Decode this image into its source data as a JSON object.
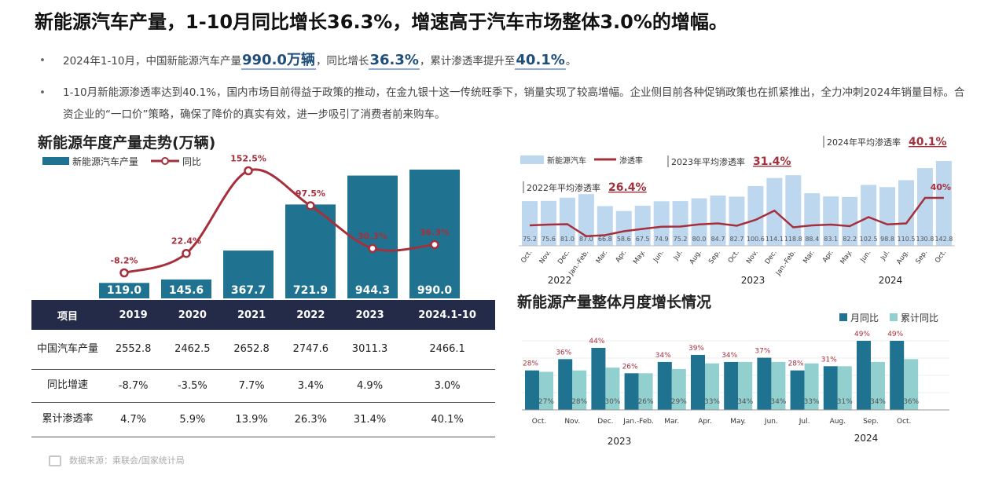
{
  "page_title": "新能源汽车产量，1-10月同比增长36.3%，增速高于汽车市场整体3.0%的增幅。",
  "bullets": {
    "dot": "•",
    "b1": {
      "t1": "2024年1-10月，中国新能源汽车产量",
      "h1": "990.0万辆",
      "t2": "，同比增长",
      "h2": "36.3%",
      "t3": "，累计渗透率提升至",
      "h3": "40.1%",
      "t4": "。"
    },
    "b2": "1-10月新能源渗透率达到40.1%，国内市场目前得益于政策的推动，在金九银十这一传统旺季下，销量实现了较高增幅。企业侧目前各种促销政策也在抓紧推出，全力冲刺2024年销量目标。合资企业的“一口价”策略，确保了降价的真实有效，进一步吸引了消费者前来购车。"
  },
  "colors": {
    "bar": "#1f7391",
    "line": "#a5303c",
    "light_bar": "#bdd7ee",
    "monthly": "#1f7391",
    "cumulative": "#92d0cf",
    "table_header": "#242b48"
  },
  "left_panel": {
    "title": "新能源年度产量走势(万辆)",
    "table_header_label": "项目",
    "rows": [
      {
        "label": "中国汽车产量",
        "values": [
          "2552.8",
          "2462.5",
          "2652.8",
          "2747.6",
          "3011.3",
          "2466.1"
        ]
      },
      {
        "label": "同比增速",
        "values": [
          "-8.7%",
          "-3.5%",
          "7.7%",
          "3.4%",
          "4.9%",
          "3.0%"
        ]
      },
      {
        "label": "累计渗透率",
        "values": [
          "4.7%",
          "5.9%",
          "13.9%",
          "26.3%",
          "31.4%",
          "40.1%"
        ]
      }
    ]
  },
  "right_panel": {
    "title": "新能源产量整体月度增长情况"
  },
  "source": "数据来源：乘联会/国家统计局",
  "chart_data": [
    {
      "type": "bar",
      "categories": [
        "2019",
        "2020",
        "2021",
        "2022",
        "2023",
        "2024.1-10"
      ],
      "series": [
        {
          "name": "新能源汽车产量",
          "values": [
            119.0,
            145.6,
            367.7,
            721.9,
            944.3,
            990.0
          ],
          "labels": [
            "119.0",
            "145.6",
            "367.7",
            "721.9",
            "944.3",
            "990.0"
          ]
        },
        {
          "name": "同比",
          "values": [
            -8.2,
            22.4,
            152.5,
            97.5,
            30.3,
            36.3
          ],
          "labels": [
            "-8.2%",
            "22.4%",
            "152.5%",
            "97.5%",
            "30.3%",
            "36.3%"
          ]
        }
      ],
      "legend": "top-left"
    },
    {
      "type": "bar",
      "categories": [
        "Oct.",
        "Nov.",
        "Dec.",
        "Jan.-Feb.",
        "Mar.",
        "Apr.",
        "May.",
        "Jun.",
        "Jul.",
        "Aug.",
        "Sep.",
        "Oct.",
        "Nov.",
        "Dec.",
        "Jan.-Feb.",
        "Mar.",
        "Apr.",
        "May.",
        "Jun.",
        "Jul.",
        "Aug.",
        "Sep.",
        "Oct."
      ],
      "year_labels": [
        "2022",
        "2023",
        "2024"
      ],
      "series": [
        {
          "name": "新能源汽车",
          "values": [
            75.2,
            75.6,
            81.0,
            87.0,
            66.8,
            58.6,
            67.5,
            74.9,
            75.2,
            80.0,
            84.7,
            82.7,
            100.6,
            114.1,
            118.8,
            88.4,
            83.1,
            82.2,
            102.5,
            98.8,
            110.5,
            130.8,
            142.8
          ],
          "labels": [
            "75.2",
            "75.6",
            "81.0",
            "87.0",
            "66.8",
            "58.6",
            "67.5",
            "74.9",
            "75.2",
            "80.0",
            "84.7",
            "82.7",
            "100.6",
            "114.1",
            "118.8",
            "88.4",
            "83.1",
            "82.2",
            "102.5",
            "98.8",
            "110.5",
            "130.8",
            "142.8"
          ]
        },
        {
          "name": "渗透率",
          "values": [
            26.0,
            26.4,
            26.6,
            20.5,
            21.0,
            23.0,
            24.2,
            25.3,
            25.4,
            26.5,
            27.0,
            25.8,
            28.8,
            33.5,
            25.0,
            26.0,
            26.4,
            25.6,
            30.2,
            26.5,
            27.0,
            40.0,
            40.0
          ],
          "labels": [
            "",
            "",
            "",
            "",
            "",
            "",
            "",
            "",
            "",
            "",
            "",
            "",
            "",
            "",
            "",
            "",
            "",
            "",
            "",
            "",
            "",
            "",
            "40%"
          ]
        }
      ],
      "annotations": [
        {
          "prefix": "2022年平均渗透率",
          "value": "26.4%"
        },
        {
          "prefix": "2023年平均渗透率",
          "value": "31.4%"
        },
        {
          "prefix": "2024年平均渗透率",
          "value": "40.1%"
        }
      ],
      "legend": "top-left"
    },
    {
      "type": "bar",
      "categories": [
        "Oct.",
        "Nov.",
        "Dec.",
        "Jan.-Feb.",
        "Mar.",
        "Apr.",
        "May.",
        "Jun.",
        "Jul.",
        "Aug.",
        "Sep.",
        "Oct."
      ],
      "year_labels": [
        "2023",
        "2024"
      ],
      "series": [
        {
          "name": "月同比",
          "values": [
            28,
            36,
            44,
            26,
            34,
            39,
            34,
            37,
            28,
            31,
            49,
            49
          ],
          "labels": [
            "28%",
            "36%",
            "44%",
            "26%",
            "34%",
            "39%",
            "34%",
            "37%",
            "28%",
            "31%",
            "49%",
            "49%"
          ]
        },
        {
          "name": "累计同比",
          "values": [
            27,
            28,
            30,
            26,
            29,
            33,
            34,
            34,
            33,
            31,
            34,
            36
          ],
          "labels": [
            "27%",
            "28%",
            "30%",
            "26%",
            "29%",
            "33%",
            "34%",
            "34%",
            "33%",
            "31%",
            "34%",
            "36%"
          ]
        }
      ],
      "legend": "top-right"
    }
  ]
}
